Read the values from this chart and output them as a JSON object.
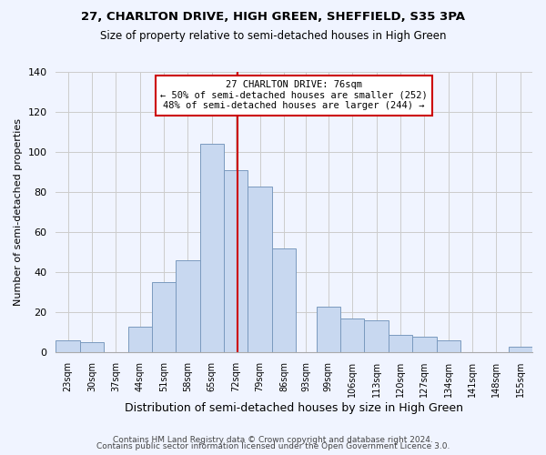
{
  "title": "27, CHARLTON DRIVE, HIGH GREEN, SHEFFIELD, S35 3PA",
  "subtitle": "Size of property relative to semi-detached houses in High Green",
  "xlabel": "Distribution of semi-detached houses by size in High Green",
  "ylabel": "Number of semi-detached properties",
  "footer_line1": "Contains HM Land Registry data © Crown copyright and database right 2024.",
  "footer_line2": "Contains public sector information licensed under the Open Government Licence 3.0.",
  "bar_color": "#c8d8f0",
  "bar_edge_color": "#7a9abf",
  "vline_x": 76,
  "vline_color": "#cc0000",
  "annotation_title": "27 CHARLTON DRIVE: 76sqm",
  "annotation_line1": "← 50% of semi-detached houses are smaller (252)",
  "annotation_line2": "48% of semi-detached houses are larger (244) →",
  "annotation_box_color": "#ffffff",
  "annotation_box_edge": "#cc0000",
  "bin_edges": [
    23,
    30,
    37,
    44,
    51,
    58,
    65,
    72,
    79,
    86,
    93,
    99,
    106,
    113,
    120,
    127,
    134,
    141,
    148,
    155,
    162
  ],
  "bin_heights": [
    6,
    5,
    0,
    13,
    35,
    46,
    104,
    91,
    83,
    52,
    0,
    23,
    17,
    16,
    9,
    8,
    6,
    0,
    0,
    3
  ],
  "ylim": [
    0,
    140
  ],
  "yticks": [
    0,
    20,
    40,
    60,
    80,
    100,
    120,
    140
  ],
  "background_color": "#f0f4ff"
}
